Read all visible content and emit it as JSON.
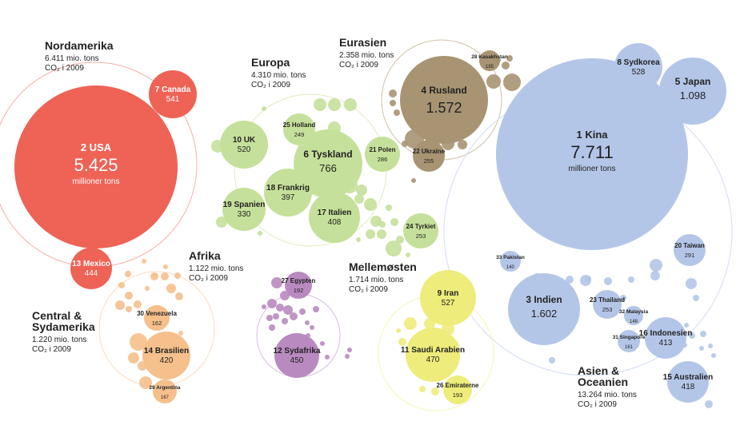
{
  "chart_data": {
    "type": "bubble",
    "unit_big": "millioner tons",
    "regions": [
      {
        "key": "nordamerika",
        "title": "Nordamerika",
        "total": "6.411 mio. tons",
        "year": "CO₂ i 2009",
        "color": "#ee6355",
        "light": "#f6b0a8"
      },
      {
        "key": "europa",
        "title": "Europa",
        "total": "4.310 mio. tons",
        "year": "CO₂ i 2009",
        "color": "#c5e09a",
        "light": "#dcecc0"
      },
      {
        "key": "eurasien",
        "title": "Eurasien",
        "total": "2.358 mio. tons",
        "year": "CO₂ i 2009",
        "color": "#a89472",
        "light": "#cfc2a8"
      },
      {
        "key": "centralsyd",
        "title": "Central & Sydamerika",
        "total": "1.220 mio. tons",
        "year": "CO₂ i 2009",
        "color": "#f5c08c",
        "light": "#f9dcbd"
      },
      {
        "key": "afrika",
        "title": "Afrika",
        "total": "1.122 mio. tons",
        "year": "CO₂ i 2009",
        "color": "#b98ac0",
        "light": "#d9bde0"
      },
      {
        "key": "mellemosten",
        "title": "Mellemøsten",
        "total": "1.714 mio. tons",
        "year": "CO₂ i 2009",
        "color": "#eeec7a",
        "light": "#f6f5b8"
      },
      {
        "key": "asien",
        "title": "Asien & Oceanien",
        "total": "13.264 mio. tons",
        "year": "CO₂ i 2009",
        "color": "#b4c6e8",
        "light": "#d3def2"
      }
    ],
    "countries": [
      {
        "rank": "2",
        "name": "USA",
        "value": "5.425",
        "region": "nordamerika",
        "unit": true
      },
      {
        "rank": "7",
        "name": "Canada",
        "value": "541",
        "region": "nordamerika"
      },
      {
        "rank": "13",
        "name": "Mexico",
        "value": "444",
        "region": "nordamerika"
      },
      {
        "rank": "1",
        "name": "Kina",
        "value": "7.711",
        "region": "asien",
        "unit": true
      },
      {
        "rank": "3",
        "name": "Indien",
        "value": "1.602",
        "region": "asien"
      },
      {
        "rank": "5",
        "name": "Japan",
        "value": "1.098",
        "region": "asien"
      },
      {
        "rank": "8",
        "name": "Sydkorea",
        "value": "528",
        "region": "asien"
      },
      {
        "rank": "15",
        "name": "Australien",
        "value": "418",
        "region": "asien"
      },
      {
        "rank": "16",
        "name": "Indonesien",
        "value": "413",
        "region": "asien"
      },
      {
        "rank": "20",
        "name": "Taiwan",
        "value": "291",
        "region": "asien"
      },
      {
        "rank": "23",
        "name": "Thailand",
        "value": "253",
        "region": "asien"
      },
      {
        "rank": "31",
        "name": "Singapore",
        "value": "161",
        "region": "asien"
      },
      {
        "rank": "32",
        "name": "Malaysia",
        "value": "148",
        "region": "asien"
      },
      {
        "rank": "33",
        "name": "Pakistan",
        "value": "140",
        "region": "asien"
      },
      {
        "rank": "4",
        "name": "Rusland",
        "value": "1.572",
        "region": "eurasien"
      },
      {
        "rank": "22",
        "name": "Ukraine",
        "value": "255",
        "region": "eurasien"
      },
      {
        "rank": "28",
        "name": "Kasakhstan",
        "value": "185",
        "region": "eurasien"
      },
      {
        "rank": "6",
        "name": "Tyskland",
        "value": "766",
        "region": "europa"
      },
      {
        "rank": "10",
        "name": "UK",
        "value": "520",
        "region": "europa"
      },
      {
        "rank": "17",
        "name": "Italien",
        "value": "408",
        "region": "europa"
      },
      {
        "rank": "18",
        "name": "Frankrig",
        "value": "397",
        "region": "europa"
      },
      {
        "rank": "19",
        "name": "Spanien",
        "value": "330",
        "region": "europa"
      },
      {
        "rank": "21",
        "name": "Polen",
        "value": "286",
        "region": "europa"
      },
      {
        "rank": "24",
        "name": "Tyrkiet",
        "value": "253",
        "region": "europa"
      },
      {
        "rank": "25",
        "name": "Holland",
        "value": "249",
        "region": "europa"
      },
      {
        "rank": "9",
        "name": "Iran",
        "value": "527",
        "region": "mellemosten"
      },
      {
        "rank": "11",
        "name": "Saudi Arabien",
        "value": "470",
        "region": "mellemosten"
      },
      {
        "rank": "26",
        "name": "Emiraterne",
        "value": "193",
        "region": "mellemosten"
      },
      {
        "rank": "12",
        "name": "Sydafrika",
        "value": "450",
        "region": "afrika"
      },
      {
        "rank": "27",
        "name": "Egypten",
        "value": "192",
        "region": "afrika"
      },
      {
        "rank": "14",
        "name": "Brasilien",
        "value": "420",
        "region": "centralsyd"
      },
      {
        "rank": "30",
        "name": "Venezuela",
        "value": "162",
        "region": "centralsyd"
      },
      {
        "rank": "29",
        "name": "Argentina",
        "value": "167",
        "region": "centralsyd"
      }
    ]
  }
}
